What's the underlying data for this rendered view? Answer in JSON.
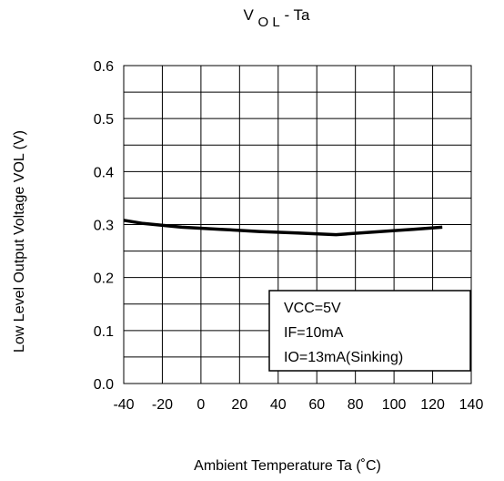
{
  "chart_data": {
    "type": "line",
    "title": {
      "main": "V",
      "sub": "O L",
      "rest": "-  Ta"
    },
    "xlabel": "Ambient Temperature    Ta (˚C)",
    "ylabel": "Low Level Output Voltage    VOL    (V)",
    "xlim": [
      -40,
      140
    ],
    "ylim": [
      0.0,
      0.6
    ],
    "x_ticks": [
      -40,
      -20,
      0,
      20,
      40,
      60,
      80,
      100,
      120,
      140
    ],
    "x_tick_labels": [
      "-40",
      "-20",
      "0",
      "20",
      "40",
      "60",
      "80",
      "100",
      "120",
      "140"
    ],
    "y_ticks": [
      0.0,
      0.1,
      0.2,
      0.3,
      0.4,
      0.5,
      0.6
    ],
    "y_tick_labels": [
      "0.0",
      "0.1",
      "0.2",
      "0.3",
      "0.4",
      "0.5",
      "0.6"
    ],
    "grid": true,
    "grid_y_minor_step": 0.05,
    "series": [
      {
        "x": [
          -40,
          -30,
          -10,
          10,
          30,
          50,
          70,
          90,
          110,
          125
        ],
        "y": [
          0.308,
          0.302,
          0.295,
          0.291,
          0.287,
          0.284,
          0.281,
          0.286,
          0.291,
          0.295
        ],
        "color": "#000000"
      }
    ],
    "annotation": {
      "lines": [
        "VCC=5V",
        "IF=10mA",
        "IO=13mA(Sinking)"
      ],
      "placement": "bottom-right"
    }
  }
}
